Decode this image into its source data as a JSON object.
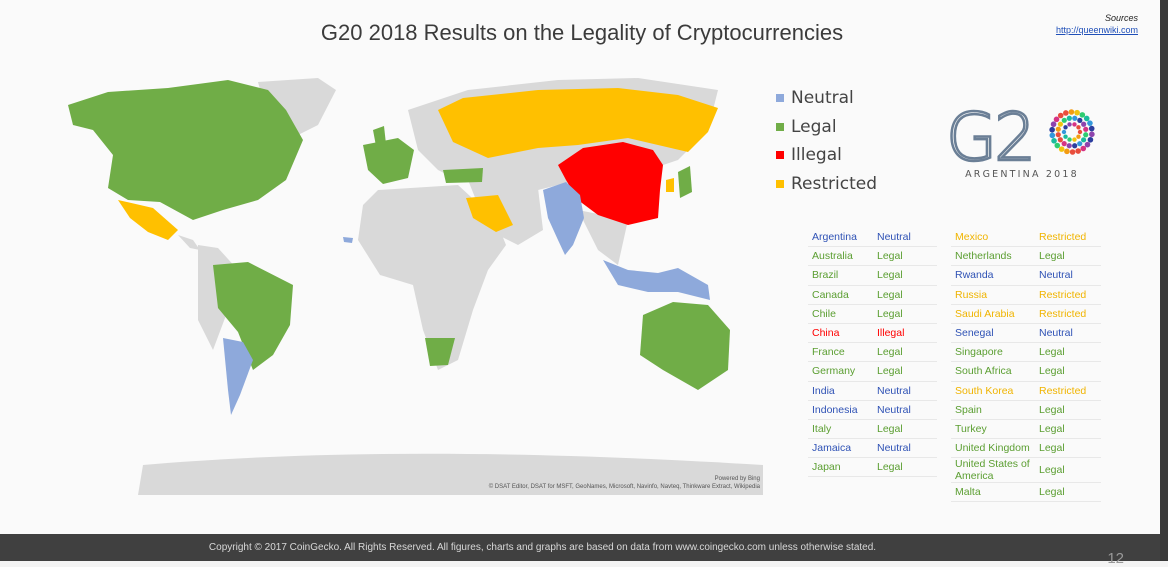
{
  "title": "G20 2018 Results on the Legality of Cryptocurrencies",
  "sources": {
    "label": "Sources",
    "link": "http://queenwiki.com"
  },
  "colors": {
    "Neutral": "#8ea9db",
    "Legal": "#70ad47",
    "Illegal": "#ff0000",
    "Restricted": "#ffc000",
    "Other": "#d9d9d9"
  },
  "text_colors": {
    "Neutral": "#2f52b5",
    "Legal": "#5b9e31",
    "Illegal": "#ff0000",
    "Restricted": "#f0b400"
  },
  "legend": [
    {
      "label": "Neutral"
    },
    {
      "label": "Legal"
    },
    {
      "label": "Illegal"
    },
    {
      "label": "Restricted"
    }
  ],
  "logo": {
    "text": "G2",
    "subtitle": "ARGENTINA 2018"
  },
  "map_credit": {
    "powered": "Powered by Bing",
    "attribution": "© DSAT Editor, DSAT for MSFT, GeoNames, Microsoft, Navinfo, Navteq, Thinkware Extract, Wikipedia"
  },
  "table_left": [
    {
      "country": "Argentina",
      "status": "Neutral"
    },
    {
      "country": "Australia",
      "status": "Legal"
    },
    {
      "country": "Brazil",
      "status": "Legal"
    },
    {
      "country": "Canada",
      "status": "Legal"
    },
    {
      "country": "Chile",
      "status": "Legal"
    },
    {
      "country": "China",
      "status": "Illegal"
    },
    {
      "country": "France",
      "status": "Legal"
    },
    {
      "country": "Germany",
      "status": "Legal"
    },
    {
      "country": "India",
      "status": "Neutral"
    },
    {
      "country": "Indonesia",
      "status": "Neutral"
    },
    {
      "country": "Italy",
      "status": "Legal"
    },
    {
      "country": "Jamaica",
      "status": "Neutral"
    },
    {
      "country": "Japan",
      "status": "Legal"
    }
  ],
  "table_right": [
    {
      "country": "Mexico",
      "status": "Restricted"
    },
    {
      "country": "Netherlands",
      "status": "Legal"
    },
    {
      "country": "Rwanda",
      "status": "Neutral"
    },
    {
      "country": "Russia",
      "status": "Restricted"
    },
    {
      "country": "Saudi Arabia",
      "status": "Restricted"
    },
    {
      "country": "Senegal",
      "status": "Neutral"
    },
    {
      "country": "Singapore",
      "status": "Legal"
    },
    {
      "country": "South Africa",
      "status": "Legal"
    },
    {
      "country": "South Korea",
      "status": "Restricted"
    },
    {
      "country": "Spain",
      "status": "Legal"
    },
    {
      "country": "Turkey",
      "status": "Legal"
    },
    {
      "country": "United Kingdom",
      "status": "Legal"
    },
    {
      "country": "United States of America",
      "status": "Legal"
    },
    {
      "country": "Malta",
      "status": "Legal"
    }
  ],
  "footer": "Copyright © 2017 CoinGecko. All Rights Reserved. All figures, charts and graphs are based on data from www.coingecko.com unless otherwise stated.",
  "page_number": "12"
}
